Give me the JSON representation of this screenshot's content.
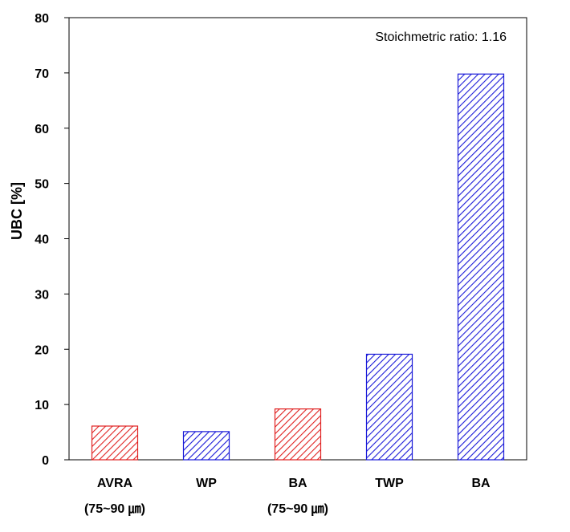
{
  "chart_data": {
    "type": "bar",
    "categories": [
      {
        "line1": "AVRA",
        "line2": "(75~90 ㎛)",
        "color": "#e02020"
      },
      {
        "line1": "WP",
        "line2": "",
        "color": "#1a1ad8"
      },
      {
        "line1": "BA",
        "line2": "(75~90 ㎛)",
        "color": "#e02020"
      },
      {
        "line1": "TWP",
        "line2": "",
        "color": "#1a1ad8"
      },
      {
        "line1": "BA",
        "line2": "",
        "color": "#1a1ad8"
      }
    ],
    "values": [
      6.1,
      5.1,
      9.2,
      19.1,
      69.8
    ],
    "ylabel": "UBC [%]",
    "xlabel": "",
    "ylim": [
      0,
      80
    ],
    "yticks": [
      0,
      10,
      20,
      30,
      40,
      50,
      60,
      70,
      80
    ],
    "annotation": "Stoichmetric ratio: 1.16",
    "pattern": "diagonal-hatch",
    "grid": false,
    "legend": "none"
  }
}
